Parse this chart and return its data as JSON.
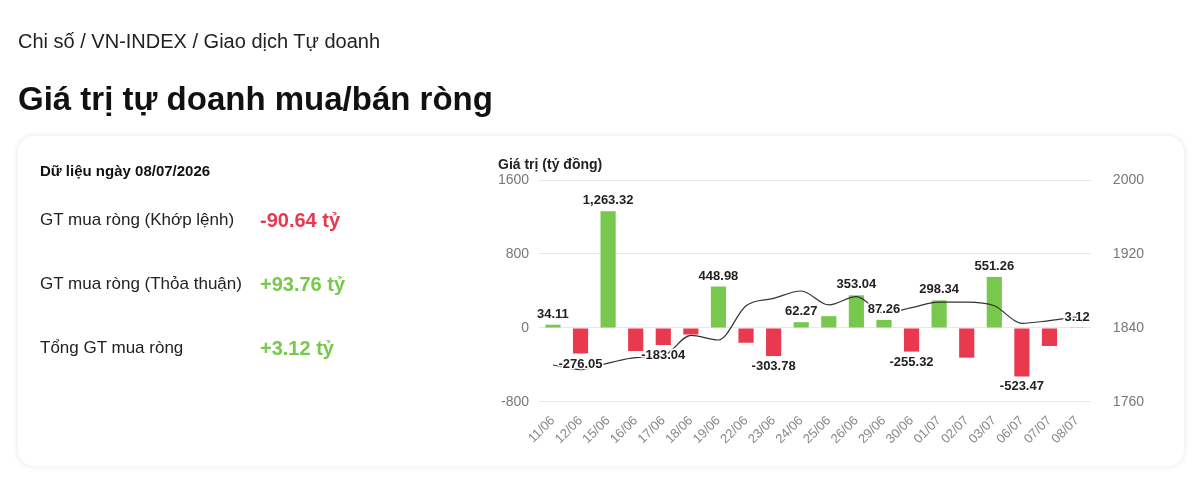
{
  "chart_data": [
    {
      "type": "other",
      "title": "Giá trị tự doanh mua/bán ròng",
      "subtitle": "Chi số / VN-INDEX / Giao dịch Tự doanh",
      "annotations": [
        "Dữ liệu ngày 08/07/2026",
        "GT mua ròng (Khớp lệnh)",
        "-90.64 tỷ",
        "GT mua ròng (Thỏa thuận)",
        "+93.76 tỷ",
        "Tổng GT mua ròng",
        "+3.12 tỷ"
      ],
      "colors": [
        "#111111",
        "#222222",
        "#e8394f",
        "#222222",
        "#77c84d",
        "#222222",
        "#77c84d"
      ]
    },
    {
      "type": "bar",
      "ylabel": "Giá trị (tỷ đồng)",
      "categories": [
        "11/06",
        "12/06",
        "15/06",
        "16/06",
        "17/06",
        "18/06",
        "19/06",
        "22/06",
        "23/06",
        "24/06",
        "25/06",
        "26/06",
        "29/06",
        "30/06",
        "01/07",
        "02/07",
        "03/07",
        "06/07",
        "07/07",
        "08/07"
      ],
      "series": [
        {
          "type": "bar",
          "values": [
            34.11,
            -276.05,
            1263.32,
            -250,
            -183.04,
            -70,
            448.98,
            -160,
            -303.78,
            62.27,
            128,
            353.04,
            87.26,
            -255.32,
            298.34,
            -321,
            551.26,
            -523.47,
            -194,
            3.12
          ],
          "colors": [
            "#77c84d",
            "#e8394f",
            "#77c84d",
            "#e8394f",
            "#e8394f",
            "#e8394f",
            "#77c84d",
            "#e8394f",
            "#e8394f",
            "#77c84d",
            "#77c84d",
            "#77c84d",
            "#77c84d",
            "#e8394f",
            "#77c84d",
            "#e8394f",
            "#77c84d",
            "#e8394f",
            "#e8394f",
            "#77c84d"
          ],
          "value_labels": [
            "34.11",
            "-276.05",
            "1,263.32",
            null,
            "-183.04",
            null,
            "448.98",
            null,
            "-303.78",
            "62.27",
            null,
            "353.04",
            "87.26",
            "-255.32",
            "298.34",
            null,
            "551.26",
            "-523.47",
            null,
            "3.12"
          ]
        },
        {
          "type": "line",
          "axis": "y2",
          "color": "#333333",
          "values": [
            1800,
            1795,
            1802,
            1808,
            1810,
            1832,
            1827,
            1864,
            1872,
            1880,
            1865,
            1874,
            1856,
            1862,
            1868,
            1868,
            1864,
            1845,
            1848,
            1852
          ]
        }
      ],
      "ylim": [
        -800,
        1600
      ],
      "yticks": [
        -800,
        0,
        800,
        1600
      ],
      "y2lim": [
        1760,
        2000
      ],
      "y2ticks": [
        1760,
        1840,
        1920,
        2000
      ],
      "grid": "y",
      "legend": false,
      "marker": "none"
    }
  ]
}
